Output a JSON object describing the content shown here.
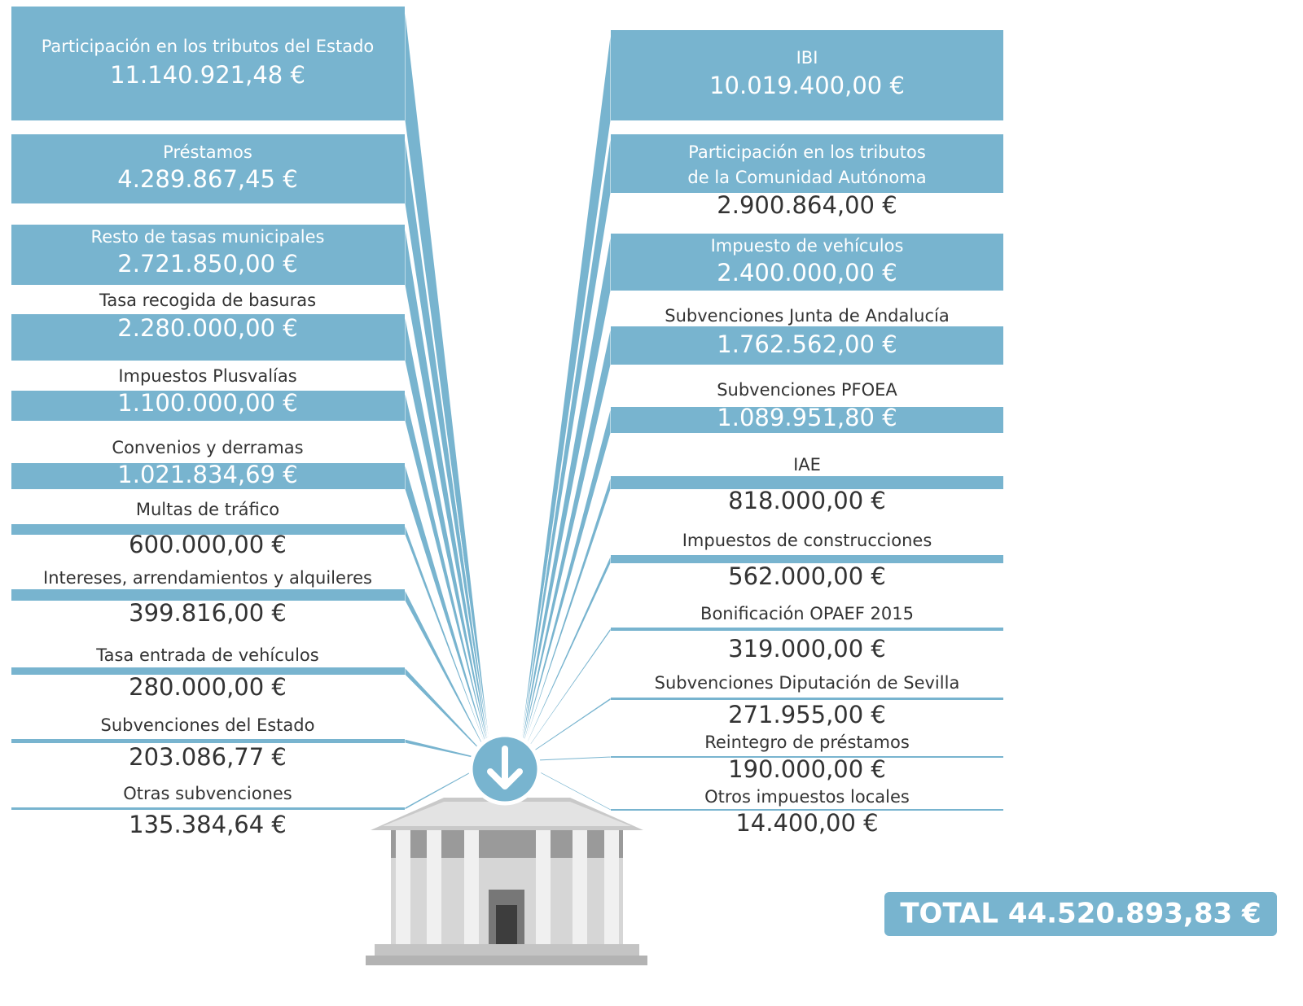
{
  "left": [
    {
      "label": "Participación en los tributos del Estado",
      "value": "11.140.921,48 €"
    },
    {
      "label": "Préstamos",
      "value": "4.289.867,45 €"
    },
    {
      "label": "Resto de tasas municipales",
      "value": "2.721.850,00 €"
    },
    {
      "label": "Tasa recogida de basuras",
      "value": "2.280.000,00 €"
    },
    {
      "label": "Impuestos Plusvalías",
      "value": "1.100.000,00 €"
    },
    {
      "label": "Convenios y derramas",
      "value": "1.021.834,69 €"
    },
    {
      "label": "Multas de tráfico",
      "value": "600.000,00 €"
    },
    {
      "label": "Intereses, arrendamientos y alquileres",
      "value": "399.816,00 €"
    },
    {
      "label": "Tasa entrada de vehículos",
      "value": "280.000,00 €"
    },
    {
      "label": "Subvenciones del Estado",
      "value": "203.086,77 €"
    },
    {
      "label": "Otras subvenciones",
      "value": "135.384,64 €"
    }
  ],
  "right": [
    {
      "label": "IBI",
      "value": "10.019.400,00 €"
    },
    {
      "label": [
        "Participación en los tributos",
        "de la Comunidad Autónoma"
      ],
      "value": "2.900.864,00 €"
    },
    {
      "label": "Impuesto de vehículos",
      "value": "2.400.000,00 €"
    },
    {
      "label": "Subvenciones Junta de Andalucía",
      "value": "1.762.562,00 €"
    },
    {
      "label": "Subvenciones PFOEA",
      "value": "1.089.951,80 €"
    },
    {
      "label": "IAE",
      "value": "818.000,00 €"
    },
    {
      "label": "Impuestos de construcciones",
      "value": "562.000,00 €"
    },
    {
      "label": "Bonificación OPAEF 2015",
      "value": "319.000,00 €"
    },
    {
      "label": "Subvenciones Diputación de Sevilla",
      "value": "271.955,00 €"
    },
    {
      "label": "Reintegro de préstamos",
      "value": "190.000,00 €"
    },
    {
      "label": "Otros impuestos locales",
      "value": "14.400,00 €"
    }
  ],
  "total": "TOTAL 44.520.893,83 €"
}
